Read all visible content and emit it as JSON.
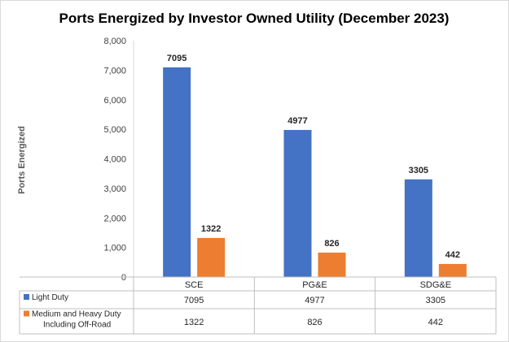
{
  "chart_data": {
    "type": "bar",
    "title": "Ports Energized by Investor Owned Utility (December 2023)",
    "ylabel": "Ports Energized",
    "xlabel": "",
    "categories": [
      "SCE",
      "PG&E",
      "SDG&E"
    ],
    "ylim": [
      0,
      8000
    ],
    "yticks": [
      0,
      1000,
      2000,
      3000,
      4000,
      5000,
      6000,
      7000,
      8000
    ],
    "ytick_labels": [
      "0",
      "1,000",
      "2,000",
      "3,000",
      "4,000",
      "5,000",
      "6,000",
      "7,000",
      "8,000"
    ],
    "grid": false,
    "legend": "data-table",
    "series": [
      {
        "name": "Light Duty",
        "values": [
          7095,
          4977,
          3305
        ],
        "color": "#4472C4"
      },
      {
        "name": "Medium and Heavy Duty Including Off-Road",
        "legend_lines": [
          "Medium and Heavy Duty",
          "Including Off-Road"
        ],
        "values": [
          1322,
          826,
          442
        ],
        "color": "#ED7D31"
      }
    ]
  }
}
